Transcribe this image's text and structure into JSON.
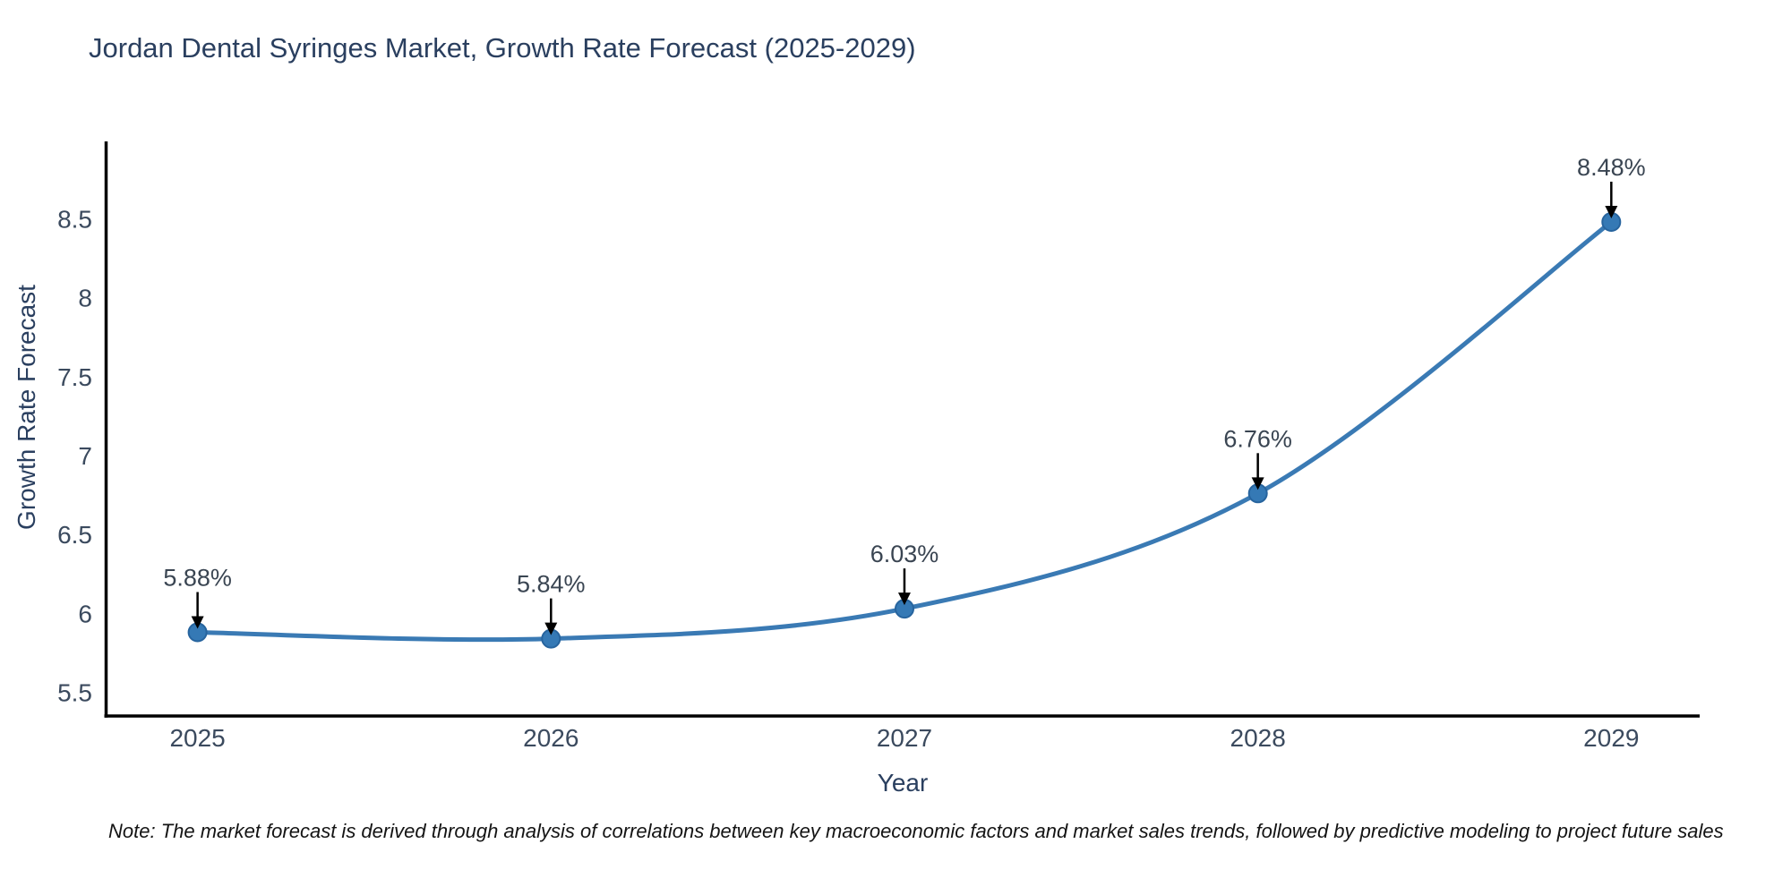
{
  "page": {
    "note": "Note: The market forecast is derived through analysis of correlations between key macroeconomic factors and market sales trends, followed by predictive modeling to project future sales"
  },
  "chart_data": {
    "type": "line",
    "title": "Jordan Dental Syringes Market, Growth Rate Forecast (2025-2029)",
    "xlabel": "Year",
    "ylabel": "Growth Rate Forecast",
    "x": [
      2025,
      2026,
      2027,
      2028,
      2029
    ],
    "values": [
      5.88,
      5.84,
      6.03,
      6.76,
      8.48
    ],
    "point_labels": [
      "5.88%",
      "5.84%",
      "6.03%",
      "6.76%",
      "8.48%"
    ],
    "x_tick_labels": [
      "2025",
      "2026",
      "2027",
      "2028",
      "2029"
    ],
    "y_ticks": [
      5.5,
      6,
      6.5,
      7,
      7.5,
      8,
      8.5
    ],
    "y_tick_labels": [
      "5.5",
      "6",
      "6.5",
      "7",
      "7.5",
      "8",
      "8.5"
    ],
    "xlim": [
      2024.74,
      2029.25
    ],
    "ylim": [
      5.35,
      8.99
    ],
    "grid": false,
    "legend": "none",
    "smooth": true,
    "line_color": "#3a7ab4",
    "marker_color": "#3579b5",
    "marker_edge_color": "#27649e",
    "axis_color": "#000000",
    "tick_color": "#3b4a5e",
    "annotation_text_color": "#3a4552",
    "annotation_arrow_color": "#000000",
    "title_color": "#2a3f5f"
  }
}
